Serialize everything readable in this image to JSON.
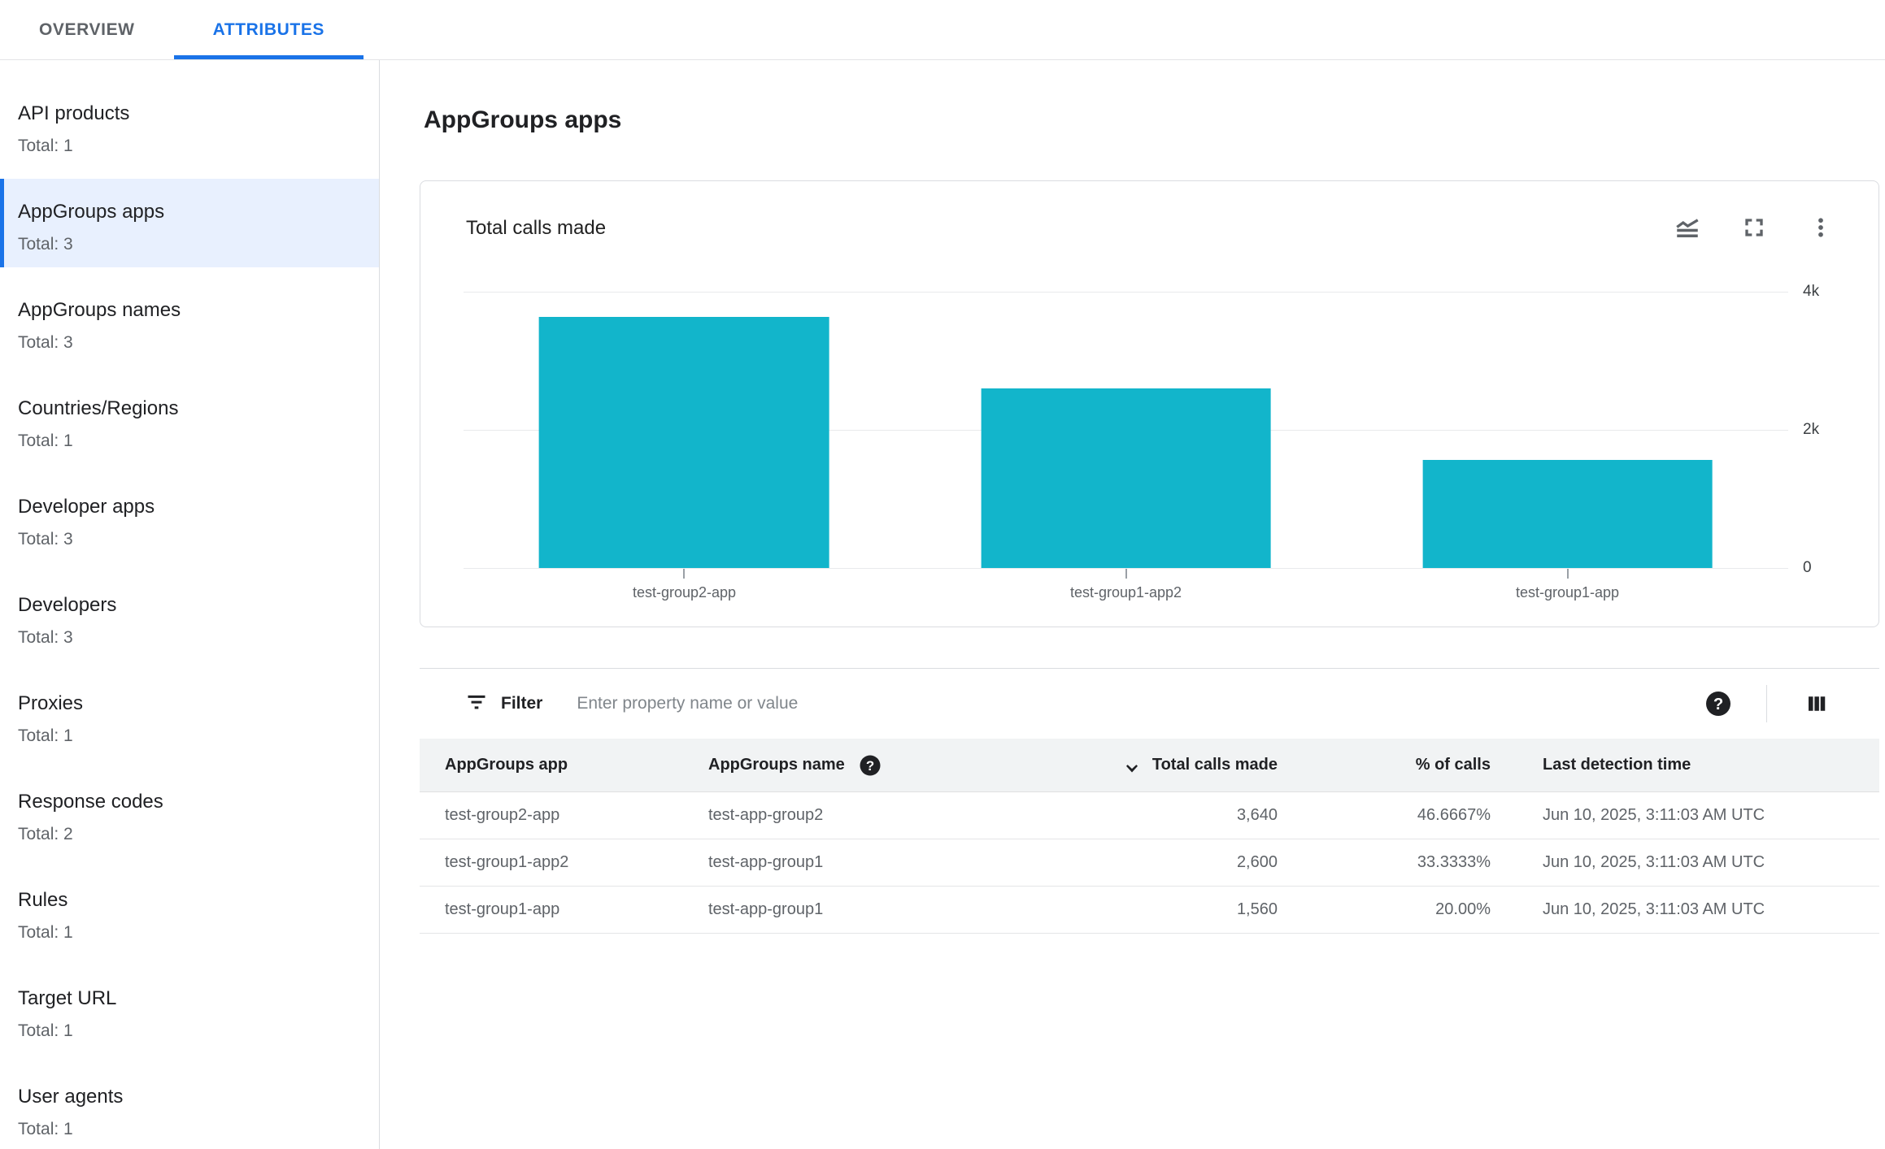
{
  "tabs": {
    "overview": "OVERVIEW",
    "attributes": "ATTRIBUTES"
  },
  "sidebar": {
    "items": [
      {
        "label": "API products",
        "total": "Total: 1",
        "selected": false
      },
      {
        "label": "AppGroups apps",
        "total": "Total: 3",
        "selected": true
      },
      {
        "label": "AppGroups names",
        "total": "Total: 3",
        "selected": false
      },
      {
        "label": "Countries/Regions",
        "total": "Total: 1",
        "selected": false
      },
      {
        "label": "Developer apps",
        "total": "Total: 3",
        "selected": false
      },
      {
        "label": "Developers",
        "total": "Total: 3",
        "selected": false
      },
      {
        "label": "Proxies",
        "total": "Total: 1",
        "selected": false
      },
      {
        "label": "Response codes",
        "total": "Total: 2",
        "selected": false
      },
      {
        "label": "Rules",
        "total": "Total: 1",
        "selected": false
      },
      {
        "label": "Target URL",
        "total": "Total: 1",
        "selected": false
      },
      {
        "label": "User agents",
        "total": "Total: 1",
        "selected": false
      }
    ]
  },
  "main": {
    "title": "AppGroups apps"
  },
  "chart_card": {
    "title": "Total calls made",
    "icons": [
      "stacked-line-chart",
      "fullscreen",
      "more-vert"
    ]
  },
  "chart_data": {
    "type": "bar",
    "title": "Total calls made",
    "categories": [
      "test-group2-app",
      "test-group1-app2",
      "test-group1-app"
    ],
    "values": [
      3640,
      2600,
      1560
    ],
    "xlabel": "",
    "ylabel": "",
    "ylim": [
      0,
      4000
    ],
    "yticks": [
      {
        "value": 0,
        "label": "0"
      },
      {
        "value": 2000,
        "label": "2k"
      },
      {
        "value": 4000,
        "label": "4k"
      }
    ],
    "ytick_side": "right",
    "grid": true,
    "legend": false,
    "bar_color": "#12b5cb"
  },
  "filter": {
    "label": "Filter",
    "placeholder": "Enter property name or value"
  },
  "table": {
    "columns": [
      {
        "label": "AppGroups app"
      },
      {
        "label": "AppGroups name"
      },
      {
        "label": "Total calls made"
      },
      {
        "label": "% of calls"
      },
      {
        "label": "Last detection time"
      }
    ],
    "rows": [
      [
        "test-group2-app",
        "test-app-group2",
        "3,640",
        "46.6667%",
        "Jun 10, 2025, 3:11:03 AM UTC"
      ],
      [
        "test-group1-app2",
        "test-app-group1",
        "2,600",
        "33.3333%",
        "Jun 10, 2025, 3:11:03 AM UTC"
      ],
      [
        "test-group1-app",
        "test-app-group1",
        "1,560",
        "20.00%",
        "Jun 10, 2025, 3:11:03 AM UTC"
      ]
    ]
  },
  "colors": {
    "accent": "#1a73e8",
    "selected_bg": "#e8f0fe",
    "bar": "#12b5cb",
    "table_header_bg": "#f1f3f4"
  }
}
